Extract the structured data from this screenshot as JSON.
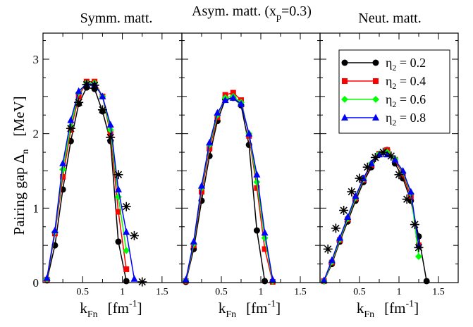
{
  "figure": {
    "ylabel_main": "Pairing gap Δ",
    "ylabel_sub": "n",
    "ylabel_unit": "[MeV]",
    "xlabel_main": "k",
    "xlabel_sub": "Fn",
    "xlabel_unit_pre": "[fm",
    "xlabel_unit_sup": "-1",
    "xlabel_unit_post": "]"
  },
  "chart_data": [
    {
      "type": "line",
      "title": "Symm. matt.",
      "xlim": [
        0.0,
        1.75
      ],
      "ylim": [
        0,
        3.35
      ],
      "xticks": [
        "0.5",
        "1",
        "1.5"
      ],
      "yticks": [
        "0",
        "1",
        "2",
        "3"
      ],
      "series": [
        {
          "name": "η2 = 0.2",
          "color": "#000000",
          "marker": "circle",
          "x": [
            0.05,
            0.15,
            0.25,
            0.35,
            0.45,
            0.55,
            0.65,
            0.75,
            0.85,
            0.95,
            1.05
          ],
          "y": [
            0.03,
            0.5,
            1.25,
            1.9,
            2.4,
            2.62,
            2.6,
            2.3,
            1.9,
            0.55,
            0.02
          ]
        },
        {
          "name": "η2 = 0.4",
          "color": "#ff0000",
          "marker": "square",
          "x": [
            0.05,
            0.15,
            0.25,
            0.35,
            0.45,
            0.55,
            0.65,
            0.75,
            0.85,
            0.95,
            1.05
          ],
          "y": [
            0.04,
            0.66,
            1.42,
            2.05,
            2.5,
            2.7,
            2.7,
            2.5,
            2.0,
            0.95,
            0.18
          ]
        },
        {
          "name": "η2 = 0.6",
          "color": "#00ff00",
          "marker": "diamond",
          "x": [
            0.05,
            0.15,
            0.25,
            0.35,
            0.45,
            0.55,
            0.65,
            0.75,
            0.85,
            0.95,
            1.05
          ],
          "y": [
            0.05,
            0.68,
            1.52,
            2.1,
            2.55,
            2.68,
            2.68,
            2.5,
            2.05,
            1.15,
            0.43
          ]
        },
        {
          "name": "η2 = 0.8",
          "color": "#0000ff",
          "marker": "triangle",
          "x": [
            0.05,
            0.15,
            0.25,
            0.35,
            0.45,
            0.55,
            0.65,
            0.75,
            0.85,
            0.95,
            1.05,
            1.15
          ],
          "y": [
            0.06,
            0.7,
            1.6,
            2.18,
            2.57,
            2.67,
            2.66,
            2.5,
            2.12,
            1.25,
            0.68,
            0.05
          ]
        },
        {
          "name": "",
          "color": "#000000",
          "marker": "star",
          "x": [
            0.35,
            0.45,
            0.55,
            0.65,
            0.75,
            0.85,
            0.95,
            1.05,
            1.15,
            1.25
          ],
          "y": [
            2.07,
            2.42,
            2.66,
            2.65,
            2.32,
            1.95,
            1.45,
            1.02,
            0.63,
            0.01
          ]
        }
      ]
    },
    {
      "type": "line",
      "title": "Asym. matt. (x",
      "title_sub": "p",
      "title_post": "=0.3)",
      "xlim": [
        0.0,
        1.75
      ],
      "ylim": [
        0,
        3.35
      ],
      "xticks": [
        "0.5",
        "1",
        "1.5"
      ],
      "yticks": [],
      "series": [
        {
          "name": "η2 = 0.2",
          "color": "#000000",
          "marker": "circle",
          "x": [
            0.05,
            0.15,
            0.25,
            0.35,
            0.45,
            0.55,
            0.65,
            0.75,
            0.85,
            0.95,
            1.05
          ],
          "y": [
            0.01,
            0.45,
            1.1,
            1.7,
            2.17,
            2.46,
            2.48,
            2.38,
            1.85,
            0.7,
            0.02
          ]
        },
        {
          "name": "η2 = 0.4",
          "color": "#ff0000",
          "marker": "square",
          "x": [
            0.05,
            0.15,
            0.25,
            0.35,
            0.45,
            0.55,
            0.65,
            0.75,
            0.85,
            0.95,
            1.05,
            1.15
          ],
          "y": [
            0.02,
            0.5,
            1.22,
            1.8,
            2.22,
            2.52,
            2.55,
            2.45,
            1.97,
            1.27,
            0.45,
            0.01
          ]
        },
        {
          "name": "η2 = 0.6",
          "color": "#00ff00",
          "marker": "diamond",
          "x": [
            0.05,
            0.15,
            0.25,
            0.35,
            0.45,
            0.55,
            0.65,
            0.75,
            0.85,
            0.95,
            1.05,
            1.15
          ],
          "y": [
            0.03,
            0.52,
            1.27,
            1.85,
            2.25,
            2.48,
            2.5,
            2.42,
            2.0,
            1.35,
            0.6,
            0.02
          ]
        },
        {
          "name": "η2 = 0.8",
          "color": "#0000ff",
          "marker": "triangle",
          "x": [
            0.05,
            0.15,
            0.25,
            0.35,
            0.45,
            0.55,
            0.65,
            0.75,
            0.85,
            0.95,
            1.05,
            1.15
          ],
          "y": [
            0.04,
            0.55,
            1.3,
            1.88,
            2.28,
            2.45,
            2.48,
            2.4,
            2.0,
            1.45,
            0.67,
            0.04
          ]
        }
      ]
    },
    {
      "type": "line",
      "title": "Neut. matt.",
      "xlim": [
        0.0,
        1.75
      ],
      "ylim": [
        0,
        3.35
      ],
      "xticks": [
        "0.5",
        "1",
        "1.5"
      ],
      "yticks": [],
      "series": [
        {
          "name": "η2 = 0.2",
          "color": "#000000",
          "marker": "circle",
          "x": [
            0.05,
            0.15,
            0.25,
            0.35,
            0.45,
            0.55,
            0.65,
            0.75,
            0.85,
            0.95,
            1.05,
            1.15,
            1.25,
            1.35
          ],
          "y": [
            0.02,
            0.25,
            0.55,
            0.82,
            1.1,
            1.35,
            1.55,
            1.72,
            1.78,
            1.6,
            1.4,
            1.1,
            0.62,
            0.02
          ]
        },
        {
          "name": "η2 = 0.4",
          "color": "#ff0000",
          "marker": "square",
          "x": [
            0.05,
            0.15,
            0.25,
            0.35,
            0.45,
            0.55,
            0.65,
            0.75,
            0.85,
            0.95,
            1.05,
            1.15,
            1.25
          ],
          "y": [
            0.02,
            0.27,
            0.57,
            0.85,
            1.13,
            1.38,
            1.58,
            1.73,
            1.78,
            1.65,
            1.45,
            1.15,
            0.5
          ]
        },
        {
          "name": "η2 = 0.6",
          "color": "#00ff00",
          "marker": "diamond",
          "x": [
            0.05,
            0.15,
            0.25,
            0.35,
            0.45,
            0.55,
            0.65,
            0.75,
            0.85,
            0.95,
            1.05,
            1.15,
            1.25
          ],
          "y": [
            0.02,
            0.28,
            0.58,
            0.86,
            1.14,
            1.39,
            1.6,
            1.73,
            1.75,
            1.66,
            1.48,
            1.2,
            0.35
          ]
        },
        {
          "name": "η2 = 0.8",
          "color": "#0000ff",
          "marker": "triangle",
          "x": [
            0.05,
            0.15,
            0.25,
            0.35,
            0.45,
            0.55,
            0.65,
            0.75,
            0.85,
            0.95,
            1.05,
            1.15,
            1.25
          ],
          "y": [
            0.03,
            0.3,
            0.6,
            0.88,
            1.16,
            1.4,
            1.6,
            1.72,
            1.72,
            1.65,
            1.5,
            1.22,
            0.5
          ]
        },
        {
          "name": "",
          "color": "#000000",
          "marker": "star",
          "x": [
            0.1,
            0.2,
            0.3,
            0.4,
            0.5,
            0.6,
            0.7,
            0.8,
            0.9,
            1.0,
            1.1,
            1.2,
            1.25
          ],
          "y": [
            0.45,
            0.73,
            0.97,
            1.22,
            1.4,
            1.55,
            1.68,
            1.75,
            1.7,
            1.45,
            1.12,
            0.78,
            0.47
          ]
        }
      ],
      "legend": {
        "position": "top-right",
        "entries": [
          {
            "prefix": "η",
            "sub": "2",
            "suffix": " = 0.2",
            "color": "#000000",
            "marker": "circle"
          },
          {
            "prefix": "η",
            "sub": "2",
            "suffix": " = 0.4",
            "color": "#ff0000",
            "marker": "square"
          },
          {
            "prefix": "η",
            "sub": "2",
            "suffix": " = 0.6",
            "color": "#00ff00",
            "marker": "diamond"
          },
          {
            "prefix": "η",
            "sub": "2",
            "suffix": " = 0.8",
            "color": "#0000ff",
            "marker": "triangle"
          }
        ]
      }
    }
  ]
}
